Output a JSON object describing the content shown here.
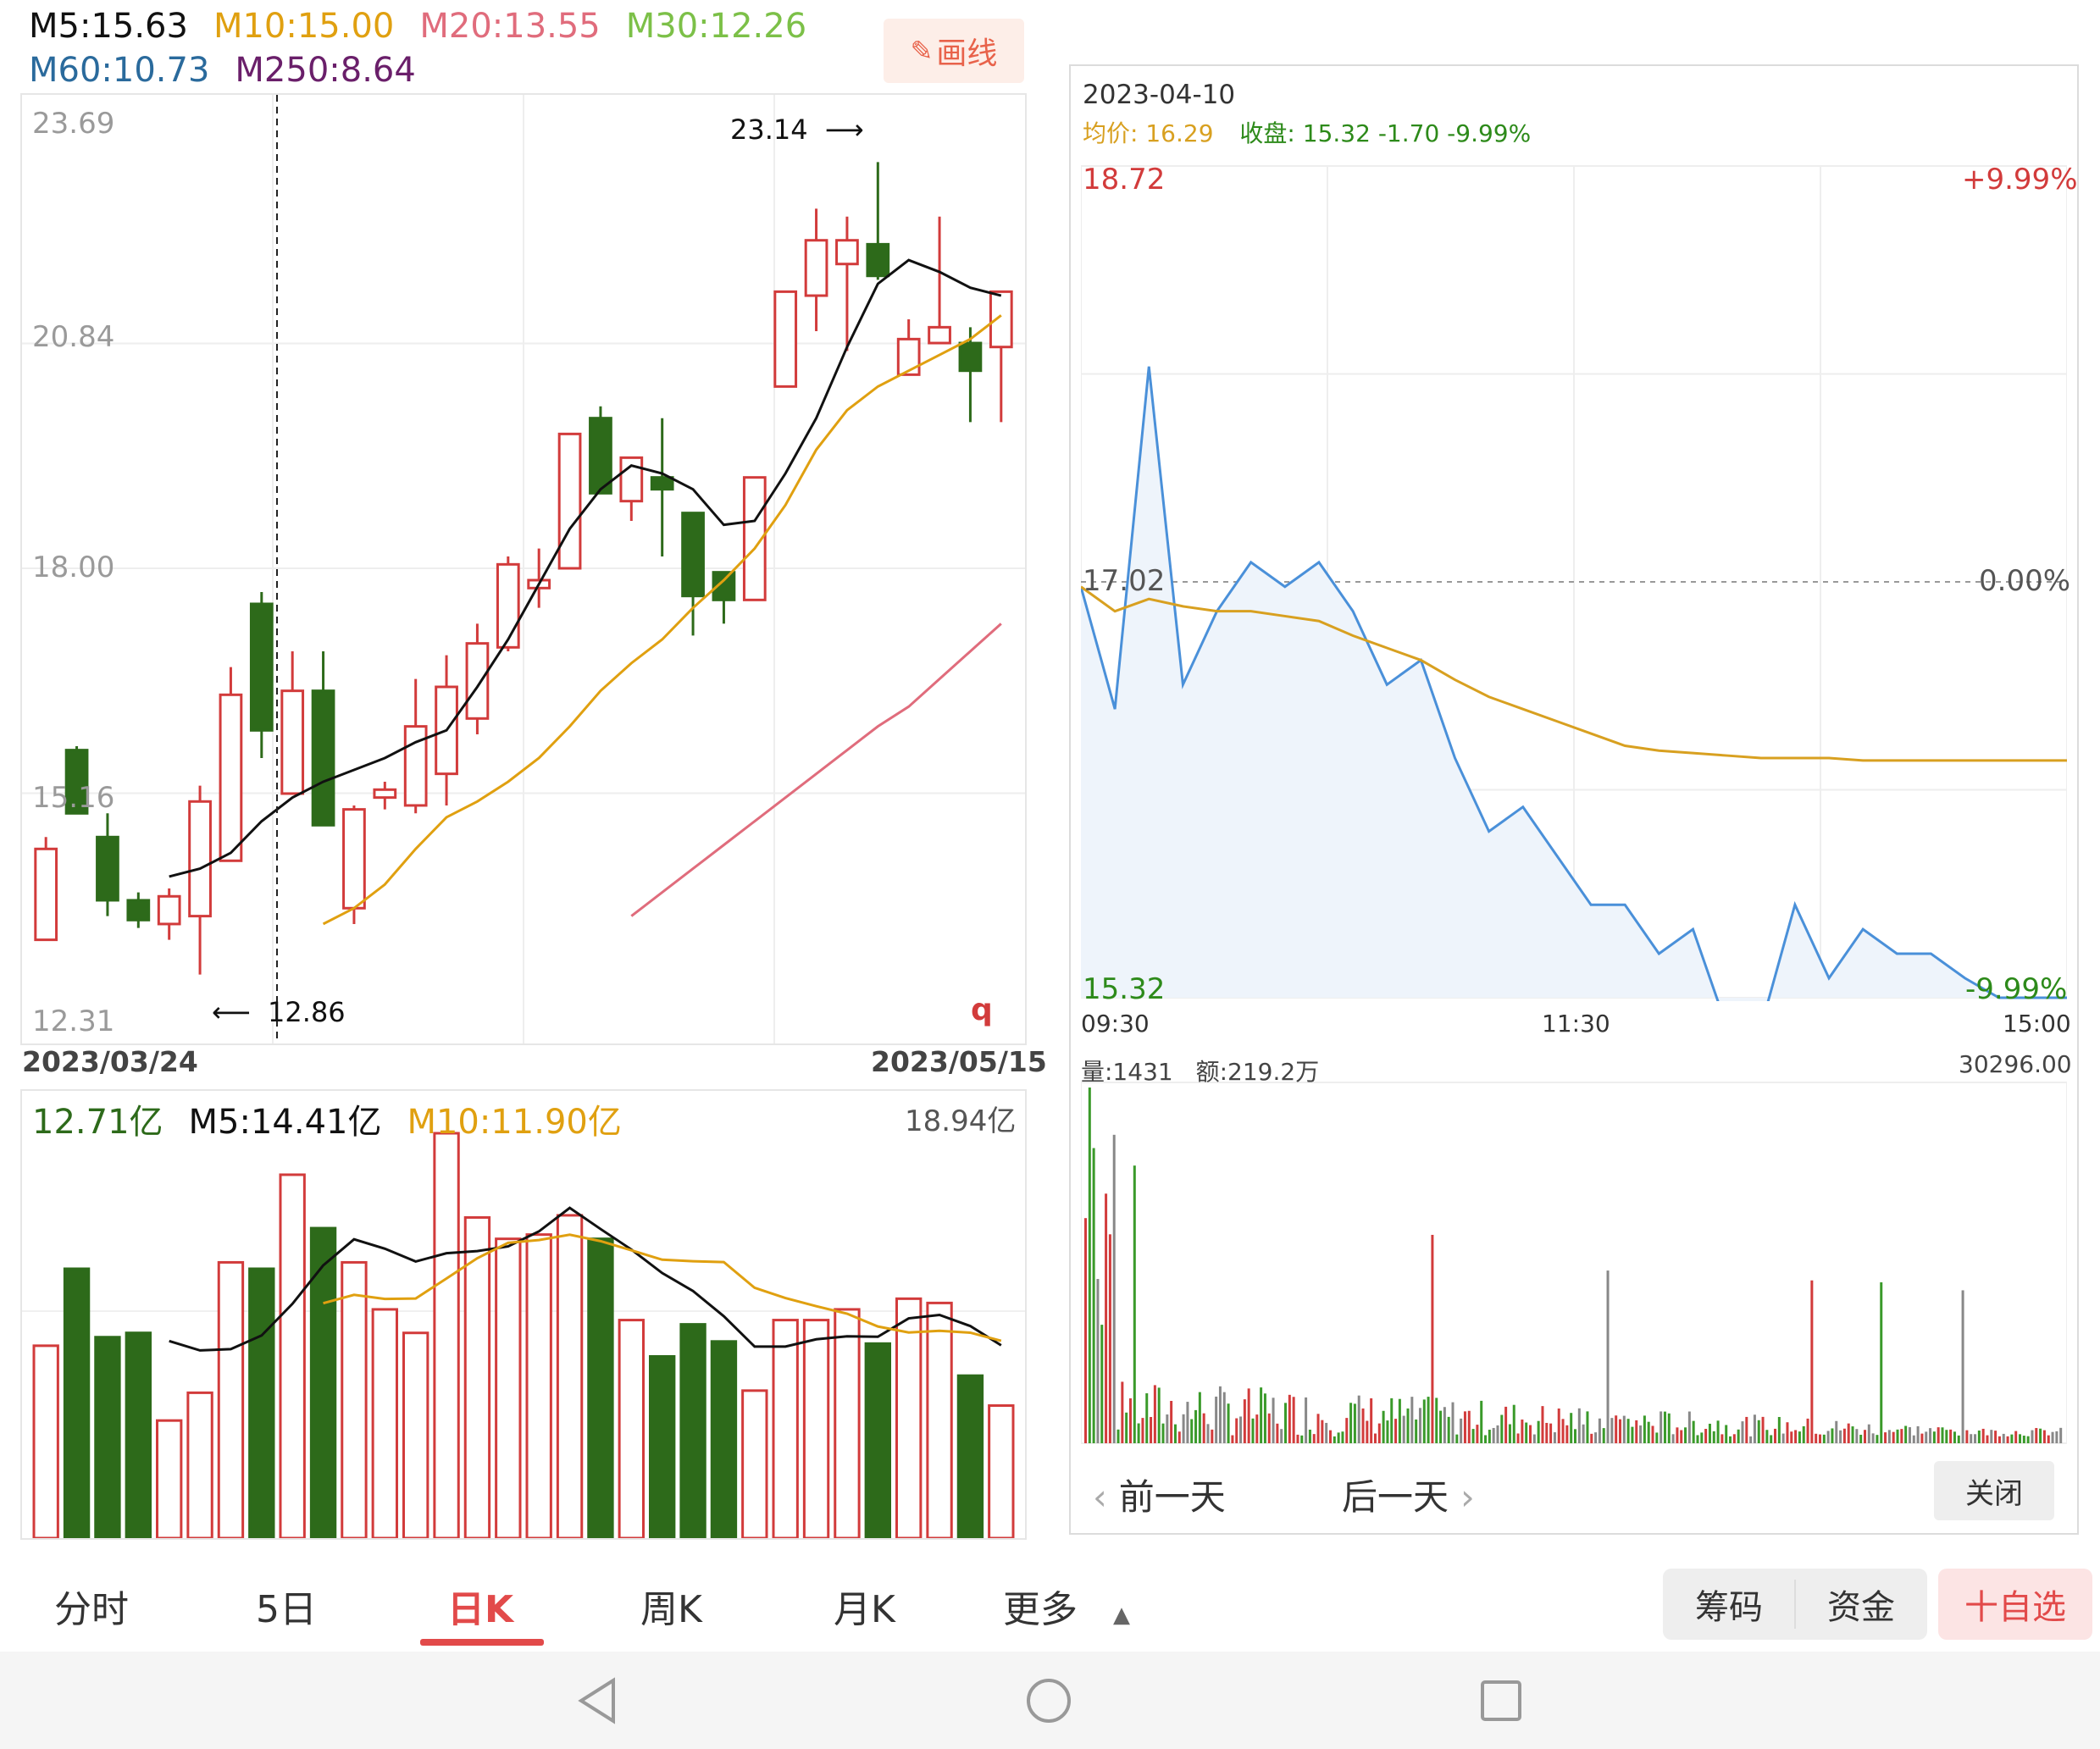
{
  "ma_legend": {
    "m5": "M5:15.63",
    "m10": "M10:15.00",
    "m20": "M20:13.55",
    "m30": "M30:12.26",
    "m60": "M60:10.73",
    "m250": "M250:8.64"
  },
  "colors": {
    "up": "#d23b3b",
    "down": "#2d6a1a",
    "m5": "#111111",
    "m10": "#e0a010",
    "m20": "#e06c7c",
    "m30": "#7cc048",
    "m60": "#2a6a9c",
    "m250": "#6a1f6a",
    "intraday_price": "#4a90d9",
    "intraday_avg": "#d8a020"
  },
  "draw_button": {
    "label": "画线",
    "icon": "pencil-icon"
  },
  "kline": {
    "y_ticks": [
      "23.69",
      "20.84",
      "18.00",
      "15.16",
      "12.31"
    ],
    "high_marker": "23.14",
    "low_marker": "12.86",
    "start_date": "2023/03/24",
    "end_date": "2023/05/15",
    "corner_icon": "q"
  },
  "chart_data": [
    {
      "type": "candlestick",
      "title": "",
      "ylim": [
        12.31,
        23.69
      ],
      "candles": [
        {
          "open": 13.3,
          "close": 14.45,
          "high": 14.6,
          "low": 13.3
        },
        {
          "open": 15.7,
          "close": 14.9,
          "high": 15.75,
          "low": 14.9
        },
        {
          "open": 14.6,
          "close": 13.8,
          "high": 14.9,
          "low": 13.6
        },
        {
          "open": 13.8,
          "close": 13.55,
          "high": 13.9,
          "low": 13.45
        },
        {
          "open": 13.5,
          "close": 13.85,
          "high": 13.95,
          "low": 13.3
        },
        {
          "open": 13.6,
          "close": 15.05,
          "high": 15.25,
          "low": 12.86
        },
        {
          "open": 14.3,
          "close": 16.4,
          "high": 16.75,
          "low": 14.3
        },
        {
          "open": 17.55,
          "close": 15.95,
          "high": 17.7,
          "low": 15.6
        },
        {
          "open": 15.15,
          "close": 16.45,
          "high": 16.95,
          "low": 15.15
        },
        {
          "open": 16.45,
          "close": 14.75,
          "high": 16.95,
          "low": 14.75
        },
        {
          "open": 13.7,
          "close": 14.95,
          "high": 15.0,
          "low": 13.5
        },
        {
          "open": 15.1,
          "close": 15.2,
          "high": 15.3,
          "low": 14.95
        },
        {
          "open": 15.0,
          "close": 16.0,
          "high": 16.6,
          "low": 14.9
        },
        {
          "open": 15.4,
          "close": 16.5,
          "high": 16.9,
          "low": 15.0
        },
        {
          "open": 16.1,
          "close": 17.05,
          "high": 17.3,
          "low": 15.9
        },
        {
          "open": 17.0,
          "close": 18.05,
          "high": 18.15,
          "low": 16.95
        },
        {
          "open": 17.75,
          "close": 17.85,
          "high": 18.25,
          "low": 17.5
        },
        {
          "open": 18.0,
          "close": 19.7,
          "high": 19.7,
          "low": 18.0
        },
        {
          "open": 19.9,
          "close": 18.95,
          "high": 20.05,
          "low": 18.95
        },
        {
          "open": 18.85,
          "close": 19.4,
          "high": 19.4,
          "low": 18.6
        },
        {
          "open": 19.15,
          "close": 19.0,
          "high": 19.9,
          "low": 18.15
        },
        {
          "open": 18.7,
          "close": 17.65,
          "high": 18.7,
          "low": 17.15
        },
        {
          "open": 17.95,
          "close": 17.6,
          "high": 17.95,
          "low": 17.3
        },
        {
          "open": 17.6,
          "close": 19.15,
          "high": 19.15,
          "low": 17.6
        },
        {
          "open": 20.3,
          "close": 21.5,
          "high": 21.5,
          "low": 20.3
        },
        {
          "open": 21.45,
          "close": 22.15,
          "high": 22.55,
          "low": 21.0
        },
        {
          "open": 21.85,
          "close": 22.15,
          "high": 22.45,
          "low": 20.75
        },
        {
          "open": 22.1,
          "close": 21.7,
          "high": 23.14,
          "low": 21.65
        },
        {
          "open": 20.45,
          "close": 20.9,
          "high": 21.15,
          "low": 20.45
        },
        {
          "open": 20.85,
          "close": 21.05,
          "high": 22.45,
          "low": 20.85
        },
        {
          "open": 20.85,
          "close": 20.5,
          "high": 21.05,
          "low": 19.85
        },
        {
          "open": 20.8,
          "close": 21.5,
          "high": 21.5,
          "low": 19.85
        }
      ],
      "ma_series": [
        {
          "name": "M5",
          "values": [
            null,
            null,
            null,
            null,
            14.1,
            14.2,
            14.4,
            14.8,
            15.1,
            15.3,
            15.45,
            15.6,
            15.8,
            15.95,
            16.5,
            17.1,
            17.8,
            18.5,
            19.0,
            19.3,
            19.2,
            19.0,
            18.55,
            18.6,
            19.2,
            19.9,
            20.8,
            21.6,
            21.9,
            21.75,
            21.55,
            21.45
          ]
        },
        {
          "name": "M10",
          "values": [
            null,
            null,
            null,
            null,
            null,
            null,
            null,
            null,
            null,
            13.5,
            13.7,
            14.0,
            14.45,
            14.85,
            15.05,
            15.3,
            15.6,
            16.0,
            16.45,
            16.8,
            17.1,
            17.5,
            17.85,
            18.25,
            18.8,
            19.5,
            20.0,
            20.3,
            20.5,
            20.7,
            20.9,
            21.2
          ]
        },
        {
          "name": "M20",
          "values": [
            null,
            null,
            null,
            null,
            null,
            null,
            null,
            null,
            null,
            null,
            null,
            null,
            null,
            null,
            null,
            null,
            null,
            null,
            null,
            13.6,
            13.9,
            14.2,
            14.5,
            14.8,
            15.1,
            15.4,
            15.7,
            16.0,
            16.25,
            16.6,
            16.95,
            17.3
          ]
        },
        {
          "name": "M30",
          "values": [
            null,
            null,
            null,
            null,
            null,
            null,
            null,
            null,
            null,
            null,
            null,
            null,
            null,
            null,
            null,
            null,
            null,
            null,
            null,
            null,
            null,
            null,
            null,
            null,
            null,
            null,
            null,
            null,
            null,
            null,
            null,
            null
          ]
        },
        {
          "name": "M60",
          "values": [
            null,
            null,
            null,
            null,
            null,
            null,
            null,
            null,
            null,
            null,
            null,
            null,
            null,
            null,
            null,
            null,
            null,
            null,
            null,
            null,
            null,
            null,
            null,
            null,
            null,
            null,
            null,
            null,
            null,
            null,
            null,
            null
          ]
        }
      ]
    },
    {
      "type": "bar",
      "title": "",
      "values": [
        9.0,
        12.6,
        9.4,
        9.6,
        5.5,
        6.8,
        12.9,
        12.6,
        17.0,
        14.5,
        12.9,
        10.7,
        9.6,
        18.94,
        15.0,
        14.0,
        14.2,
        15.1,
        14.0,
        10.2,
        8.5,
        10.0,
        9.2,
        6.9,
        10.2,
        10.2,
        10.7,
        9.1,
        11.2,
        11.0,
        7.6,
        6.2
      ],
      "ylim": [
        0,
        18.94
      ]
    },
    {
      "type": "line",
      "title": "",
      "x_ticks": [
        "09:30",
        "11:30",
        "15:00"
      ],
      "ylim": [
        15.32,
        18.72
      ],
      "series": [
        {
          "name": "价格",
          "values": [
            17.0,
            16.5,
            17.9,
            16.6,
            16.9,
            17.1,
            17.0,
            17.1,
            16.9,
            16.6,
            16.7,
            16.3,
            16.0,
            16.1,
            15.9,
            15.7,
            15.7,
            15.5,
            15.6,
            15.2,
            15.2,
            15.7,
            15.4,
            15.6,
            15.5,
            15.5,
            15.4,
            15.32,
            15.32,
            15.32
          ]
        },
        {
          "name": "均价",
          "values": [
            17.0,
            16.9,
            16.95,
            16.92,
            16.9,
            16.9,
            16.88,
            16.86,
            16.8,
            16.75,
            16.7,
            16.62,
            16.55,
            16.5,
            16.45,
            16.4,
            16.35,
            16.33,
            16.32,
            16.31,
            16.3,
            16.3,
            16.3,
            16.29,
            16.29,
            16.29,
            16.29,
            16.29,
            16.29,
            16.29
          ]
        }
      ]
    }
  ],
  "volume": {
    "current": "12.71亿",
    "m5": "M5:14.41亿",
    "m10": "M10:11.90亿",
    "max": "18.94亿"
  },
  "intraday": {
    "date": "2023-04-10",
    "avg_label": "均价:",
    "avg_value": "16.29",
    "close_label": "收盘:",
    "close_value": "15.32 -1.70 -9.99%",
    "price_high": "18.72",
    "pct_high": "+9.99%",
    "price_mid": "17.02",
    "pct_mid": "0.00%",
    "price_low": "15.32",
    "pct_low": "-9.99%",
    "time_start": "09:30",
    "time_mid": "11:30",
    "time_end": "15:00",
    "vol_label": "量:1431",
    "amount_label": "额:219.2万",
    "vol_max": "30296.00",
    "prev_day": "前一天",
    "next_day": "后一天",
    "close_button": "关闭"
  },
  "tabs": [
    "分时",
    "5日",
    "日K",
    "周K",
    "月K",
    "更多"
  ],
  "right_buttons": {
    "chips": "筹码",
    "funds": "资金",
    "watchlist": "十自选"
  }
}
